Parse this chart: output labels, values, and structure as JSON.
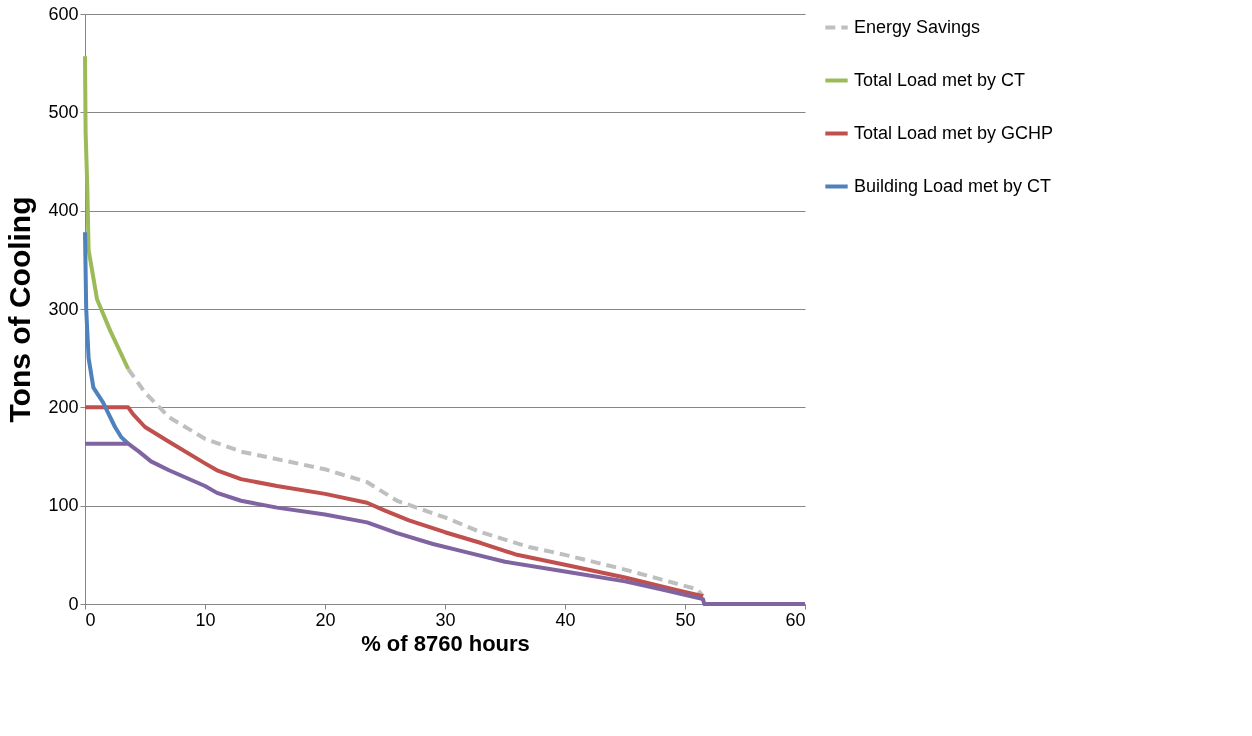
{
  "chart_data": {
    "type": "line",
    "xlabel": "% of 8760 hours",
    "ylabel": "Tons of Cooling",
    "xlim": [
      0,
      60
    ],
    "xticks": [
      0,
      10,
      20,
      30,
      40,
      50,
      60
    ],
    "ylim": [
      0,
      600
    ],
    "yticks": [
      0,
      100,
      200,
      300,
      400,
      500,
      600
    ],
    "grid": "y",
    "legend": "right",
    "series": [
      {
        "name": "Energy Savings",
        "color": "#bfbfbf",
        "line_style": "dashed",
        "x": [
          3.6,
          5,
          7,
          10,
          13,
          20,
          23.5,
          26,
          30,
          33,
          37,
          40,
          45,
          48,
          51,
          51.5
        ],
        "values": [
          239,
          215,
          190,
          168,
          155,
          137,
          124,
          105,
          88,
          73,
          58,
          50,
          35,
          25,
          15,
          8
        ]
      },
      {
        "name": "Total Load met by CT",
        "color": "#9bbb59",
        "line_style": "solid",
        "x": [
          0,
          0.05,
          0.2,
          0.3,
          1.0,
          2.1,
          3.6
        ],
        "values": [
          557,
          480,
          420,
          360,
          310,
          278,
          239
        ]
      },
      {
        "name": "Total Load met by GCHP",
        "color": "#c0504d",
        "line_style": "solid",
        "x": [
          0,
          3.6,
          4,
          5,
          7,
          10,
          11,
          13,
          16,
          20,
          23.5,
          25,
          27,
          30,
          33,
          36,
          40,
          45,
          49,
          51.5
        ],
        "values": [
          200,
          200,
          193,
          180,
          165,
          143,
          136,
          127,
          120,
          112,
          103,
          95,
          85,
          73,
          62,
          50,
          40,
          27,
          15,
          8
        ]
      },
      {
        "name": "Building Load met by CT",
        "color": "#4f81bd",
        "line_style": "solid",
        "x": [
          0,
          0.1,
          0.3,
          0.7,
          1.5,
          2.5,
          3,
          3.6
        ],
        "values": [
          378,
          300,
          250,
          220,
          205,
          180,
          170,
          163
        ]
      },
      {
        "color": "#8064a2",
        "line_style": "solid",
        "x": [
          0,
          3.6,
          4.5,
          5.5,
          7,
          10,
          11,
          13,
          16,
          20,
          23.5,
          26,
          29,
          32,
          35,
          40,
          45,
          48,
          51.5,
          51.6,
          60
        ],
        "values": [
          163,
          163,
          155,
          145,
          136,
          120,
          113,
          105,
          98,
          91,
          83,
          72,
          61,
          52,
          43,
          33,
          23,
          15,
          5,
          0,
          0
        ]
      }
    ]
  }
}
